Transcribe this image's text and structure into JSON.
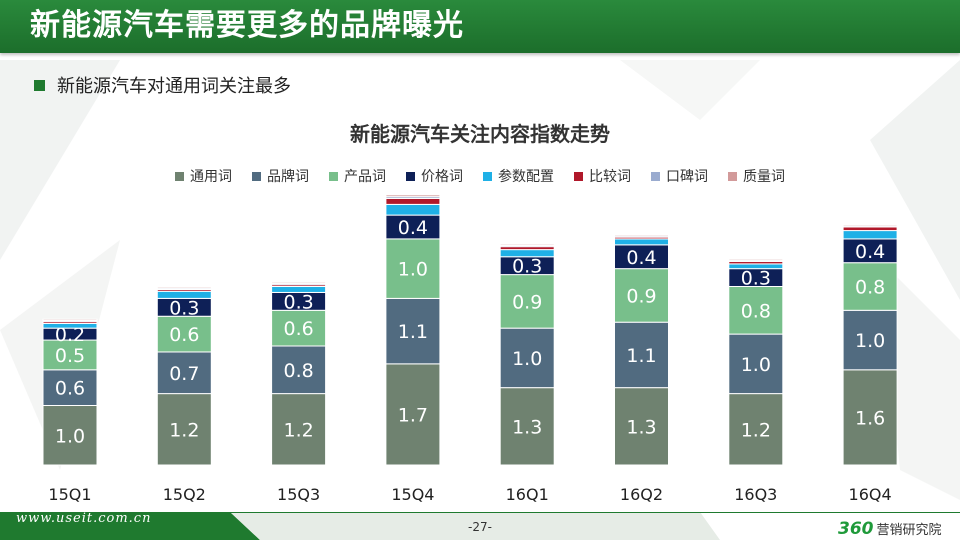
{
  "slide_title": "新能源汽车需要更多的品牌曝光",
  "bullet": "新能源汽车对通用词关注最多",
  "chart_data": {
    "type": "bar",
    "stacked": true,
    "title": "新能源汽车关注内容指数走势",
    "categories": [
      "15Q1",
      "15Q2",
      "15Q3",
      "15Q4",
      "16Q1",
      "16Q2",
      "16Q3",
      "16Q4"
    ],
    "series": [
      {
        "name": "通用词",
        "color": "#6f8270",
        "values": [
          1.0,
          1.2,
          1.2,
          1.7,
          1.3,
          1.3,
          1.2,
          1.6
        ]
      },
      {
        "name": "品牌词",
        "color": "#516b80",
        "values": [
          0.6,
          0.7,
          0.8,
          1.1,
          1.0,
          1.1,
          1.0,
          1.0
        ]
      },
      {
        "name": "产品词",
        "color": "#78bf8b",
        "values": [
          0.5,
          0.6,
          0.6,
          1.0,
          0.9,
          0.9,
          0.8,
          0.8
        ]
      },
      {
        "name": "价格词",
        "color": "#0e2057",
        "values": [
          0.2,
          0.3,
          0.3,
          0.4,
          0.3,
          0.4,
          0.3,
          0.4
        ]
      },
      {
        "name": "参数配置",
        "color": "#1fb0e6",
        "values": [
          0.08,
          0.12,
          0.1,
          0.18,
          0.12,
          0.1,
          0.08,
          0.14
        ]
      },
      {
        "name": "比较词",
        "color": "#b0182a",
        "values": [
          0.03,
          0.03,
          0.03,
          0.1,
          0.05,
          0.03,
          0.04,
          0.06
        ]
      },
      {
        "name": "口碑词",
        "color": "#9aabcf",
        "values": [
          0.02,
          0.02,
          0.02,
          0.03,
          0.02,
          0.02,
          0.02,
          0.02
        ]
      },
      {
        "name": "质量词",
        "color": "#d29a9a",
        "values": [
          0.02,
          0.02,
          0.02,
          0.03,
          0.02,
          0.02,
          0.02,
          0.02
        ]
      }
    ],
    "labeled_series_count": 4,
    "legend_position": "top",
    "grid": false
  },
  "footer": {
    "url": "www.useit.com.cn",
    "page": "-27-",
    "brand_number": "360",
    "brand_text": "营销研究院"
  },
  "colors": {
    "title_bar": "#1f7a2f",
    "bullet": "#1f7a2f",
    "brand": "#1f9a3a"
  }
}
